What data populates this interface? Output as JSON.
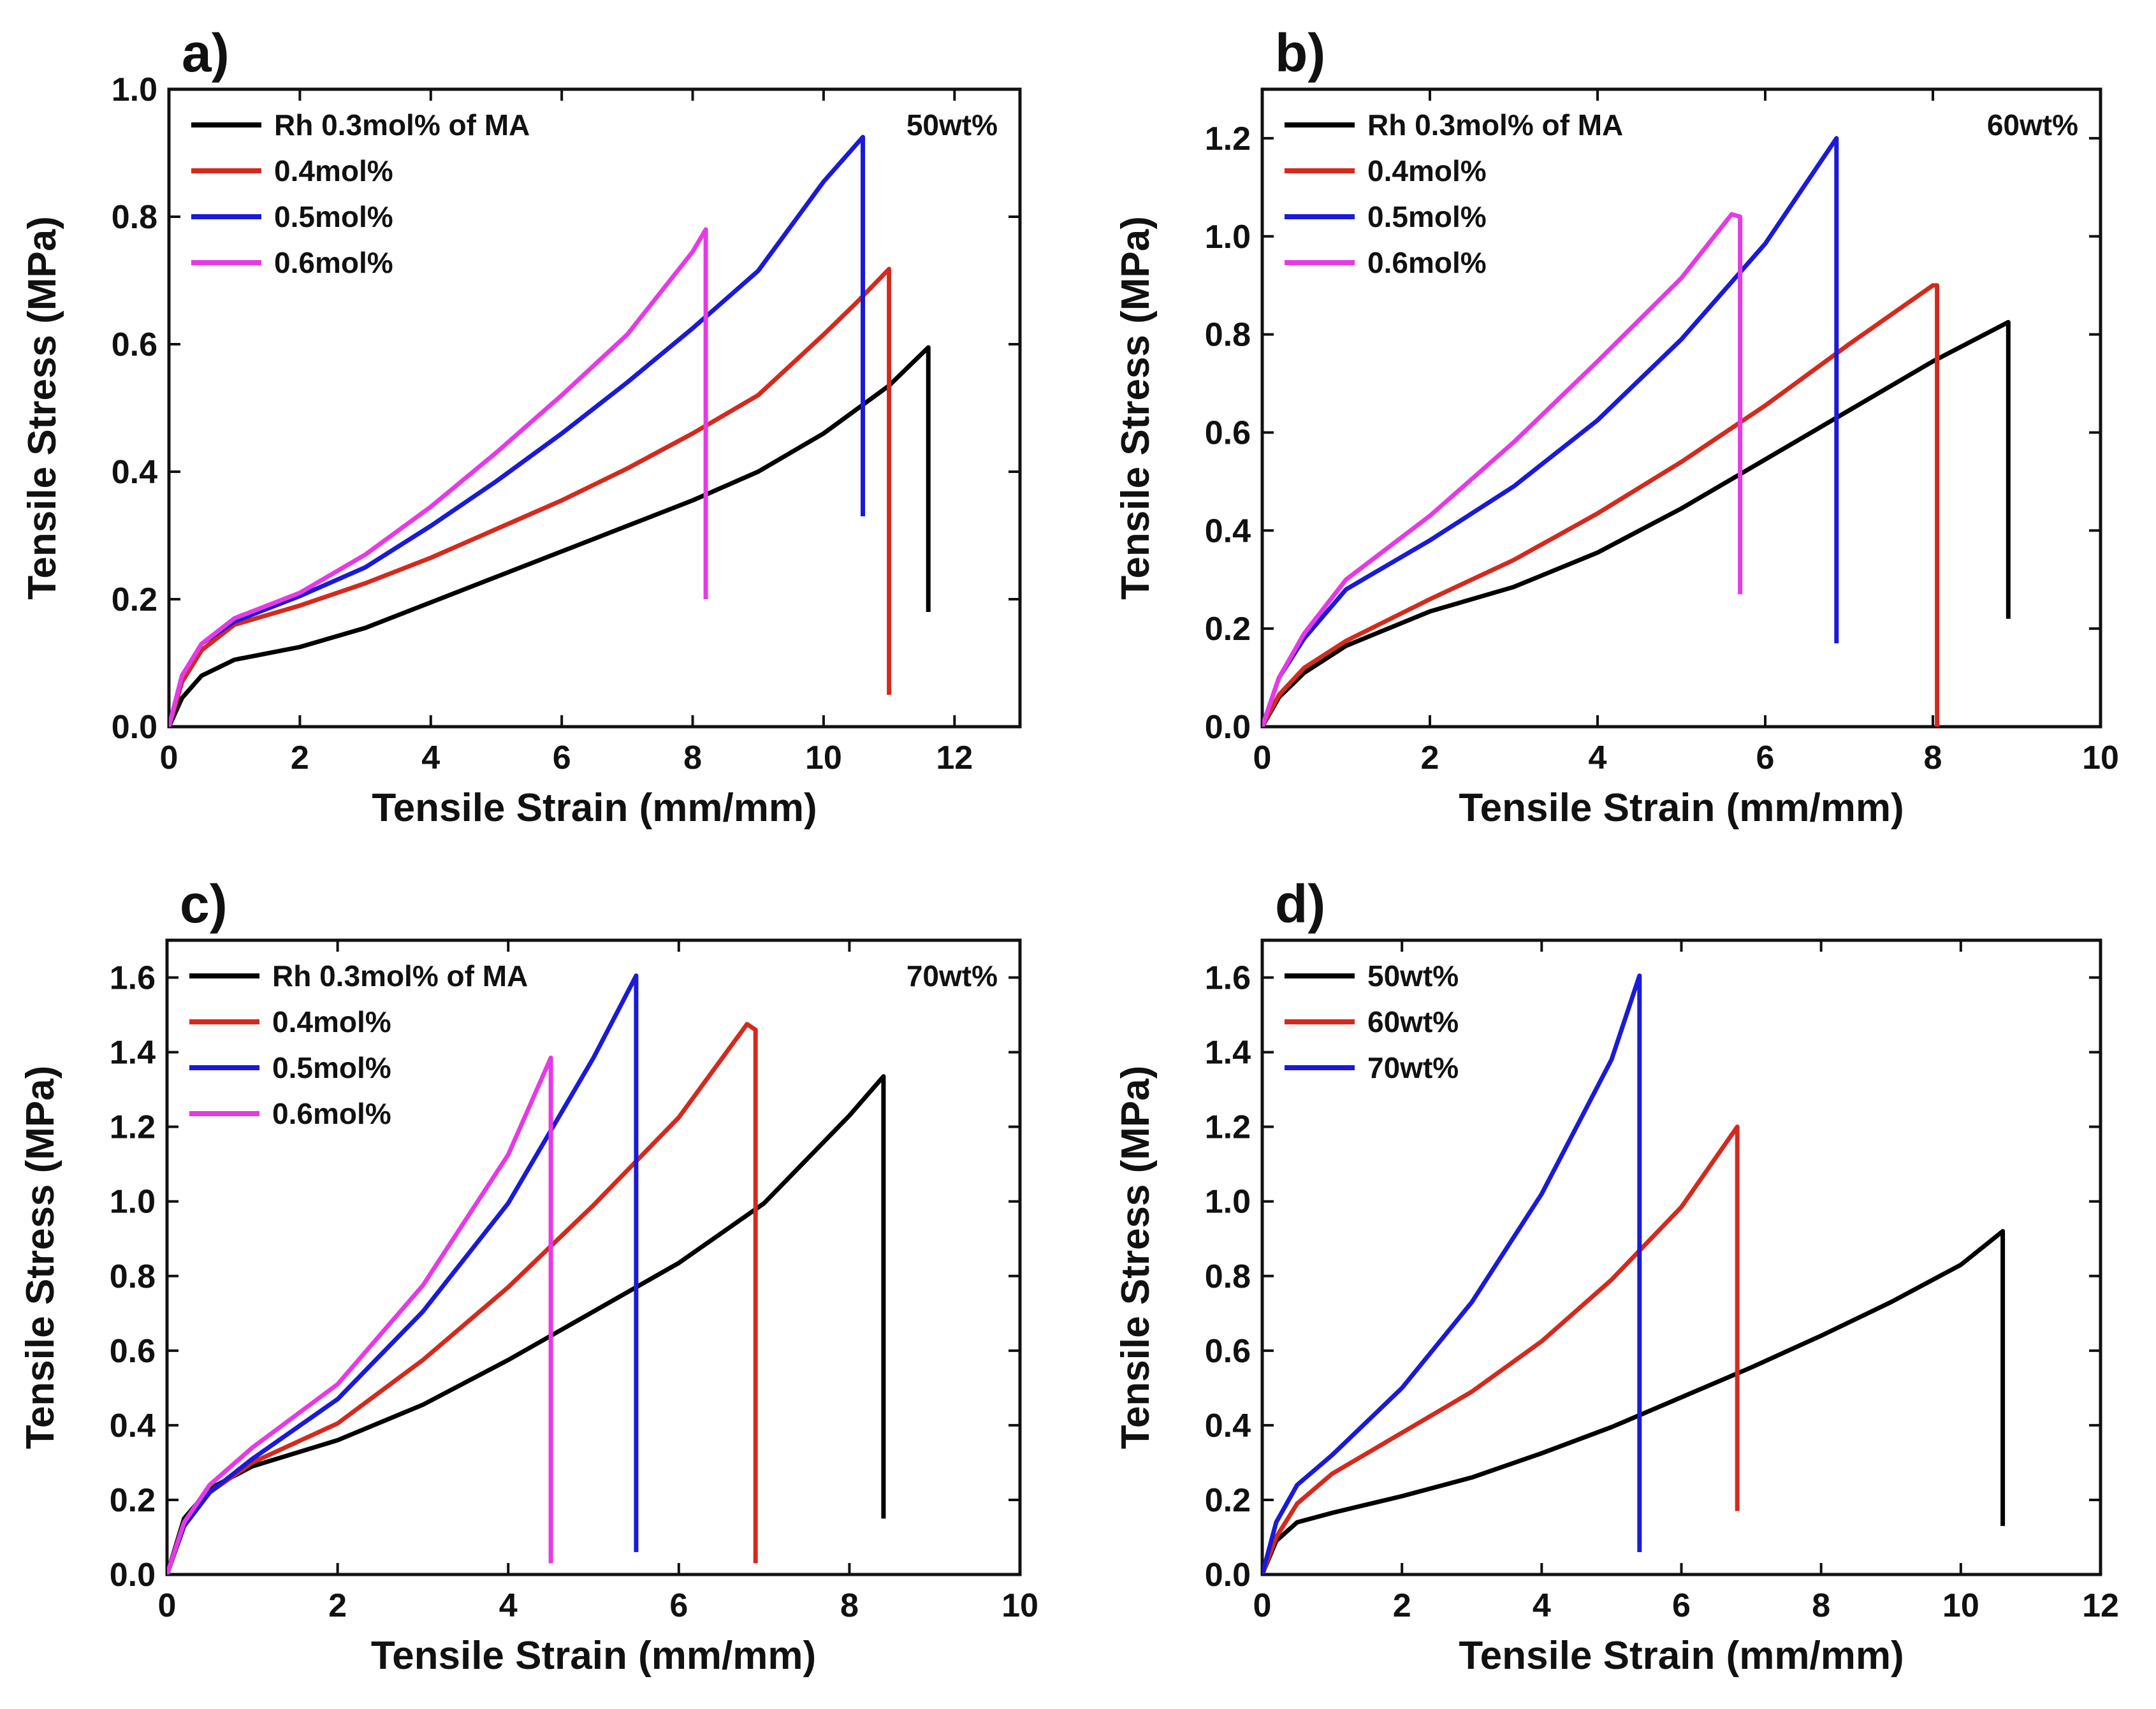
{
  "figure_title": "",
  "chart_data": [
    {
      "panel": "a)",
      "type": "line",
      "title": "",
      "annotation": "50wt%",
      "xlabel": "Tensile Strain (mm/mm)",
      "ylabel": "Tensile Stress (MPa)",
      "xlim": [
        0,
        13
      ],
      "ylim": [
        0,
        1.0
      ],
      "xticks": [
        0,
        2,
        4,
        6,
        8,
        10,
        12
      ],
      "yticks": [
        0.0,
        0.2,
        0.4,
        0.6,
        0.8,
        1.0
      ],
      "xtick_labels": [
        "0",
        "2",
        "4",
        "6",
        "8",
        "10",
        "12"
      ],
      "ytick_labels": [
        "0.0",
        "0.2",
        "0.4",
        "0.6",
        "0.8",
        "1.0"
      ],
      "legend_position": "top-left",
      "series": [
        {
          "name": "Rh 0.3mol% of MA",
          "color": "#000000",
          "points": [
            [
              0,
              0
            ],
            [
              0.2,
              0.045
            ],
            [
              0.5,
              0.08
            ],
            [
              1,
              0.105
            ],
            [
              2,
              0.125
            ],
            [
              3,
              0.155
            ],
            [
              4,
              0.195
            ],
            [
              5,
              0.235
            ],
            [
              6,
              0.275
            ],
            [
              7,
              0.315
            ],
            [
              8,
              0.355
            ],
            [
              9,
              0.4
            ],
            [
              10,
              0.46
            ],
            [
              11,
              0.535
            ],
            [
              11.6,
              0.595
            ],
            [
              11.6,
              0.18
            ]
          ]
        },
        {
          "name": "0.4mol%",
          "color": "#d42a1e",
          "points": [
            [
              0,
              0
            ],
            [
              0.2,
              0.07
            ],
            [
              0.5,
              0.12
            ],
            [
              1,
              0.16
            ],
            [
              2,
              0.19
            ],
            [
              3,
              0.225
            ],
            [
              4,
              0.265
            ],
            [
              5,
              0.31
            ],
            [
              6,
              0.355
            ],
            [
              7,
              0.405
            ],
            [
              8,
              0.46
            ],
            [
              9,
              0.52
            ],
            [
              10,
              0.615
            ],
            [
              10.5,
              0.665
            ],
            [
              11,
              0.718
            ],
            [
              11,
              0.05
            ]
          ]
        },
        {
          "name": "0.5mol%",
          "color": "#1a1ad8",
          "points": [
            [
              0,
              0
            ],
            [
              0.2,
              0.08
            ],
            [
              0.5,
              0.13
            ],
            [
              1,
              0.165
            ],
            [
              2,
              0.205
            ],
            [
              3,
              0.25
            ],
            [
              4,
              0.315
            ],
            [
              5,
              0.385
            ],
            [
              6,
              0.46
            ],
            [
              7,
              0.54
            ],
            [
              8,
              0.625
            ],
            [
              9,
              0.715
            ],
            [
              10,
              0.855
            ],
            [
              10.6,
              0.925
            ],
            [
              10.6,
              0.33
            ]
          ]
        },
        {
          "name": "0.6mol%",
          "color": "#e63ae6",
          "points": [
            [
              0,
              0
            ],
            [
              0.2,
              0.08
            ],
            [
              0.5,
              0.13
            ],
            [
              1,
              0.17
            ],
            [
              2,
              0.21
            ],
            [
              3,
              0.27
            ],
            [
              4,
              0.345
            ],
            [
              5,
              0.43
            ],
            [
              6,
              0.52
            ],
            [
              7,
              0.615
            ],
            [
              8,
              0.745
            ],
            [
              8.2,
              0.78
            ],
            [
              8.2,
              0.2
            ]
          ]
        }
      ]
    },
    {
      "panel": "b)",
      "type": "line",
      "title": "",
      "annotation": "60wt%",
      "xlabel": "Tensile Strain (mm/mm)",
      "ylabel": "Tensile Stress (MPa)",
      "xlim": [
        0,
        10
      ],
      "ylim": [
        0,
        1.3
      ],
      "xticks": [
        0,
        2,
        4,
        6,
        8,
        10
      ],
      "yticks": [
        0.0,
        0.2,
        0.4,
        0.6,
        0.8,
        1.0,
        1.2
      ],
      "xtick_labels": [
        "0",
        "2",
        "4",
        "6",
        "8",
        "10"
      ],
      "ytick_labels": [
        "0.0",
        "0.2",
        "0.4",
        "0.6",
        "0.8",
        "1.0",
        "1.2"
      ],
      "legend_position": "top-left",
      "series": [
        {
          "name": "Rh 0.3mol% of MA",
          "color": "#000000",
          "points": [
            [
              0,
              0
            ],
            [
              0.2,
              0.06
            ],
            [
              0.5,
              0.11
            ],
            [
              1,
              0.165
            ],
            [
              2,
              0.235
            ],
            [
              3,
              0.285
            ],
            [
              4,
              0.355
            ],
            [
              5,
              0.445
            ],
            [
              6,
              0.545
            ],
            [
              7,
              0.645
            ],
            [
              8,
              0.745
            ],
            [
              8.9,
              0.825
            ],
            [
              8.9,
              0.22
            ]
          ]
        },
        {
          "name": "0.4mol%",
          "color": "#d42a1e",
          "points": [
            [
              0,
              0
            ],
            [
              0.2,
              0.065
            ],
            [
              0.5,
              0.12
            ],
            [
              1,
              0.175
            ],
            [
              2,
              0.26
            ],
            [
              3,
              0.34
            ],
            [
              4,
              0.435
            ],
            [
              5,
              0.54
            ],
            [
              6,
              0.655
            ],
            [
              7,
              0.78
            ],
            [
              8,
              0.9
            ],
            [
              8.05,
              0.9
            ],
            [
              8.05,
              0.0
            ]
          ]
        },
        {
          "name": "0.5mol%",
          "color": "#1a1ad8",
          "points": [
            [
              0,
              0
            ],
            [
              0.2,
              0.1
            ],
            [
              0.5,
              0.18
            ],
            [
              1,
              0.28
            ],
            [
              2,
              0.38
            ],
            [
              3,
              0.49
            ],
            [
              4,
              0.625
            ],
            [
              5,
              0.79
            ],
            [
              6,
              0.985
            ],
            [
              6.85,
              1.2
            ],
            [
              6.85,
              0.17
            ]
          ]
        },
        {
          "name": "0.6mol%",
          "color": "#e63ae6",
          "points": [
            [
              0,
              0
            ],
            [
              0.2,
              0.1
            ],
            [
              0.5,
              0.19
            ],
            [
              1,
              0.3
            ],
            [
              2,
              0.43
            ],
            [
              3,
              0.58
            ],
            [
              4,
              0.745
            ],
            [
              5,
              0.915
            ],
            [
              5.6,
              1.045
            ],
            [
              5.7,
              1.04
            ],
            [
              5.7,
              0.27
            ]
          ]
        }
      ]
    },
    {
      "panel": "c)",
      "type": "line",
      "title": "",
      "annotation": "70wt%",
      "xlabel": "Tensile Strain (mm/mm)",
      "ylabel": "Tensile Stress (MPa)",
      "xlim": [
        0,
        10
      ],
      "ylim": [
        0,
        1.7
      ],
      "xticks": [
        0,
        2,
        4,
        6,
        8,
        10
      ],
      "yticks": [
        0.0,
        0.2,
        0.4,
        0.6,
        0.8,
        1.0,
        1.2,
        1.4,
        1.6
      ],
      "xtick_labels": [
        "0",
        "2",
        "4",
        "6",
        "8",
        "10"
      ],
      "ytick_labels": [
        "0.0",
        "0.2",
        "0.4",
        "0.6",
        "0.8",
        "1.0",
        "1.2",
        "1.4",
        "1.6"
      ],
      "legend_position": "top-left",
      "series": [
        {
          "name": "Rh 0.3mol% of MA",
          "color": "#000000",
          "points": [
            [
              0,
              0
            ],
            [
              0.2,
              0.15
            ],
            [
              0.5,
              0.23
            ],
            [
              1,
              0.29
            ],
            [
              2,
              0.36
            ],
            [
              3,
              0.455
            ],
            [
              4,
              0.575
            ],
            [
              5,
              0.705
            ],
            [
              6,
              0.835
            ],
            [
              7,
              0.995
            ],
            [
              8,
              1.23
            ],
            [
              8.4,
              1.335
            ],
            [
              8.4,
              0.15
            ]
          ]
        },
        {
          "name": "0.4mol%",
          "color": "#d42a1e",
          "points": [
            [
              0,
              0
            ],
            [
              0.2,
              0.13
            ],
            [
              0.5,
              0.22
            ],
            [
              1,
              0.3
            ],
            [
              2,
              0.405
            ],
            [
              3,
              0.575
            ],
            [
              4,
              0.77
            ],
            [
              5,
              0.99
            ],
            [
              6,
              1.225
            ],
            [
              6.8,
              1.475
            ],
            [
              6.9,
              1.46
            ],
            [
              6.9,
              0.03
            ]
          ]
        },
        {
          "name": "0.5mol%",
          "color": "#1a1ad8",
          "points": [
            [
              0,
              0
            ],
            [
              0.2,
              0.13
            ],
            [
              0.5,
              0.22
            ],
            [
              1,
              0.31
            ],
            [
              2,
              0.47
            ],
            [
              3,
              0.705
            ],
            [
              4,
              0.995
            ],
            [
              5,
              1.385
            ],
            [
              5.5,
              1.605
            ],
            [
              5.5,
              0.06
            ]
          ]
        },
        {
          "name": "0.6mol%",
          "color": "#e63ae6",
          "points": [
            [
              0,
              0
            ],
            [
              0.2,
              0.14
            ],
            [
              0.5,
              0.24
            ],
            [
              1,
              0.34
            ],
            [
              2,
              0.51
            ],
            [
              3,
              0.775
            ],
            [
              4,
              1.125
            ],
            [
              4.5,
              1.385
            ],
            [
              4.5,
              0.03
            ]
          ]
        }
      ]
    },
    {
      "panel": "d)",
      "type": "line",
      "title": "",
      "annotation": "",
      "xlabel": "Tensile Strain (mm/mm)",
      "ylabel": "Tensile Stress (MPa)",
      "xlim": [
        0,
        12
      ],
      "ylim": [
        0,
        1.7
      ],
      "xticks": [
        0,
        2,
        4,
        6,
        8,
        10,
        12
      ],
      "yticks": [
        0.0,
        0.2,
        0.4,
        0.6,
        0.8,
        1.0,
        1.2,
        1.4,
        1.6
      ],
      "xtick_labels": [
        "0",
        "2",
        "4",
        "6",
        "8",
        "10",
        "12"
      ],
      "ytick_labels": [
        "0.0",
        "0.2",
        "0.4",
        "0.6",
        "0.8",
        "1.0",
        "1.2",
        "1.4",
        "1.6"
      ],
      "legend_position": "top-left",
      "series": [
        {
          "name": "50wt%",
          "color": "#000000",
          "points": [
            [
              0,
              0
            ],
            [
              0.2,
              0.09
            ],
            [
              0.5,
              0.14
            ],
            [
              1,
              0.165
            ],
            [
              2,
              0.21
            ],
            [
              3,
              0.26
            ],
            [
              4,
              0.325
            ],
            [
              5,
              0.395
            ],
            [
              6,
              0.475
            ],
            [
              7,
              0.555
            ],
            [
              8,
              0.64
            ],
            [
              9,
              0.73
            ],
            [
              10,
              0.83
            ],
            [
              10.6,
              0.92
            ],
            [
              10.6,
              0.13
            ]
          ]
        },
        {
          "name": "60wt%",
          "color": "#d42a1e",
          "points": [
            [
              0,
              0
            ],
            [
              0.2,
              0.1
            ],
            [
              0.5,
              0.19
            ],
            [
              1,
              0.27
            ],
            [
              2,
              0.38
            ],
            [
              3,
              0.49
            ],
            [
              4,
              0.625
            ],
            [
              5,
              0.79
            ],
            [
              6,
              0.985
            ],
            [
              6.8,
              1.2
            ],
            [
              6.8,
              0.17
            ]
          ]
        },
        {
          "name": "70wt%",
          "color": "#1a1ad8",
          "points": [
            [
              0,
              0
            ],
            [
              0.2,
              0.14
            ],
            [
              0.5,
              0.24
            ],
            [
              1,
              0.32
            ],
            [
              2,
              0.5
            ],
            [
              3,
              0.73
            ],
            [
              4,
              1.02
            ],
            [
              5,
              1.38
            ],
            [
              5.4,
              1.605
            ],
            [
              5.4,
              0.06
            ]
          ]
        }
      ]
    }
  ]
}
